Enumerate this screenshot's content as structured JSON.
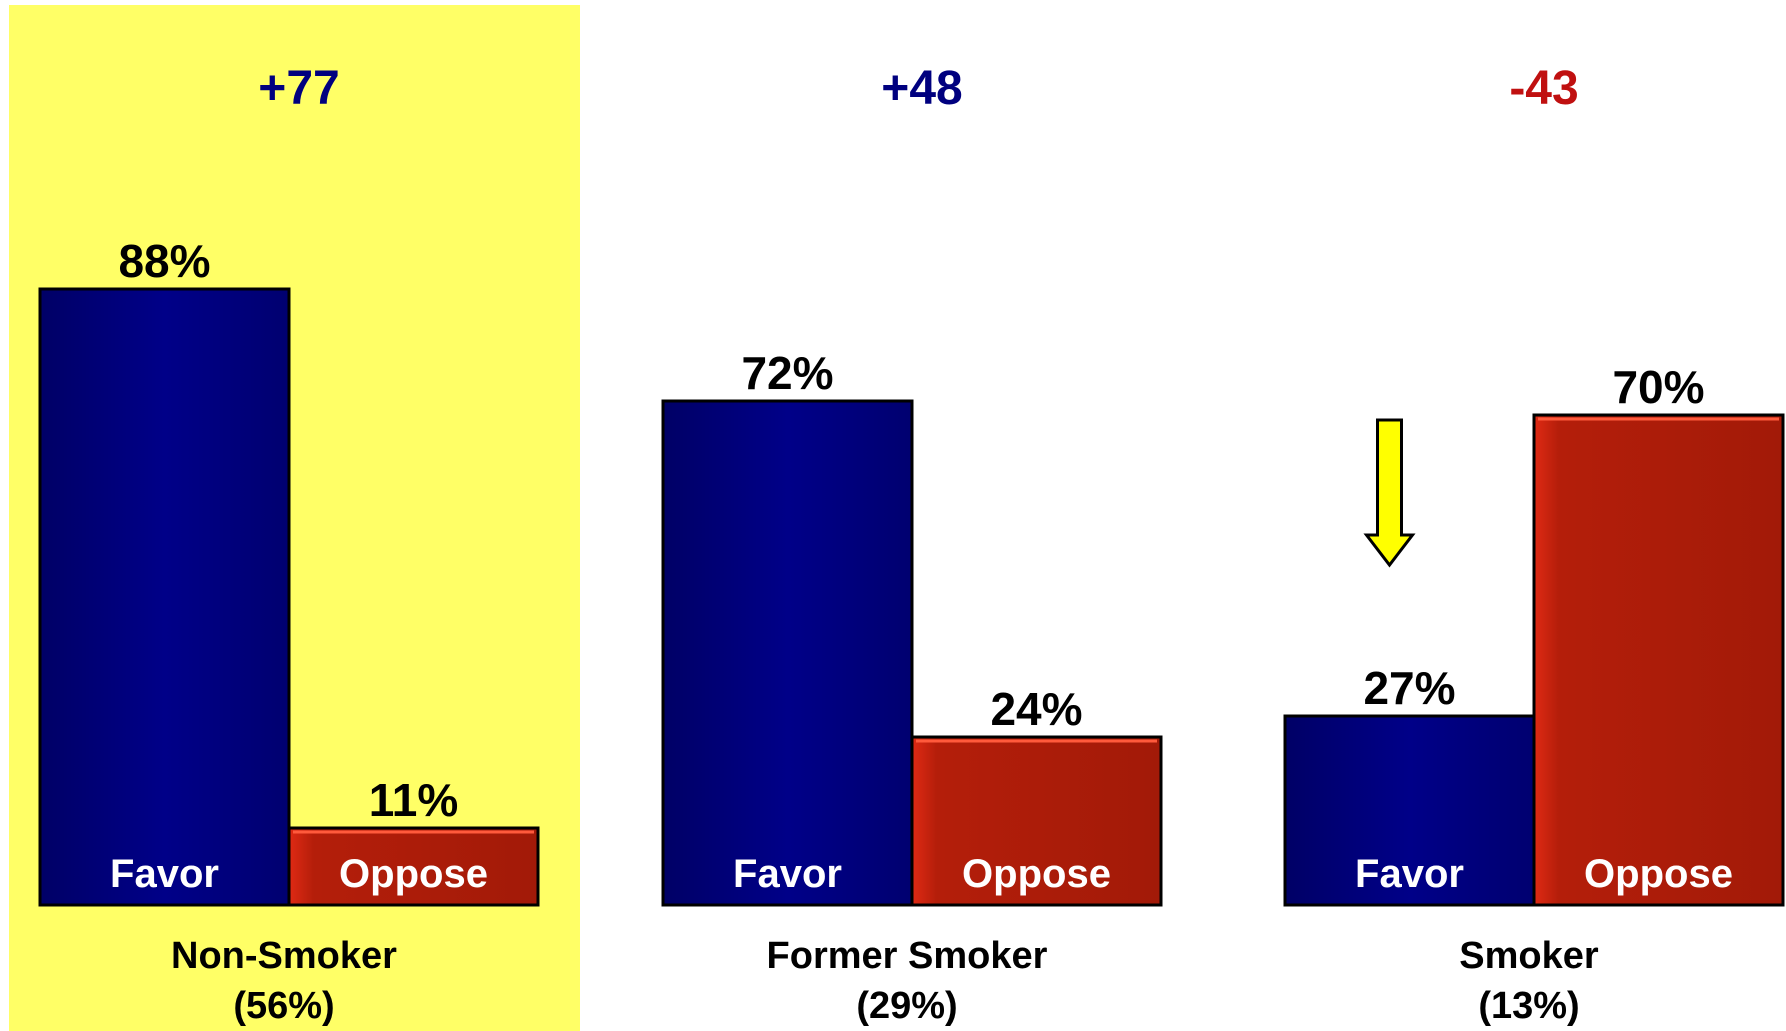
{
  "chart_data": {
    "type": "bar",
    "ylim": [
      0,
      100
    ],
    "legend": "none",
    "grid": false,
    "highlight_group": "Non-Smoker",
    "colors": {
      "favor": "#00007f",
      "oppose": "#aa1e0a",
      "positive_net": "#00007f",
      "negative_net": "#c01010",
      "highlight": "#ffff66",
      "arrow": "#ffff00"
    },
    "groups": [
      {
        "name": "Non-Smoker",
        "share": "(56%)",
        "net": "+77",
        "bars": [
          {
            "label": "Favor",
            "value": 88,
            "value_label": "88%"
          },
          {
            "label": "Oppose",
            "value": 11,
            "value_label": "11%"
          }
        ]
      },
      {
        "name": "Former Smoker",
        "share": "(29%)",
        "net": "+48",
        "bars": [
          {
            "label": "Favor",
            "value": 72,
            "value_label": "72%"
          },
          {
            "label": "Oppose",
            "value": 24,
            "value_label": "24%"
          }
        ]
      },
      {
        "name": "Smoker",
        "share": "(13%)",
        "net": "-43",
        "arrow_on": "Favor",
        "bars": [
          {
            "label": "Favor",
            "value": 27,
            "value_label": "27%"
          },
          {
            "label": "Oppose",
            "value": 70,
            "value_label": "70%"
          }
        ]
      }
    ]
  }
}
